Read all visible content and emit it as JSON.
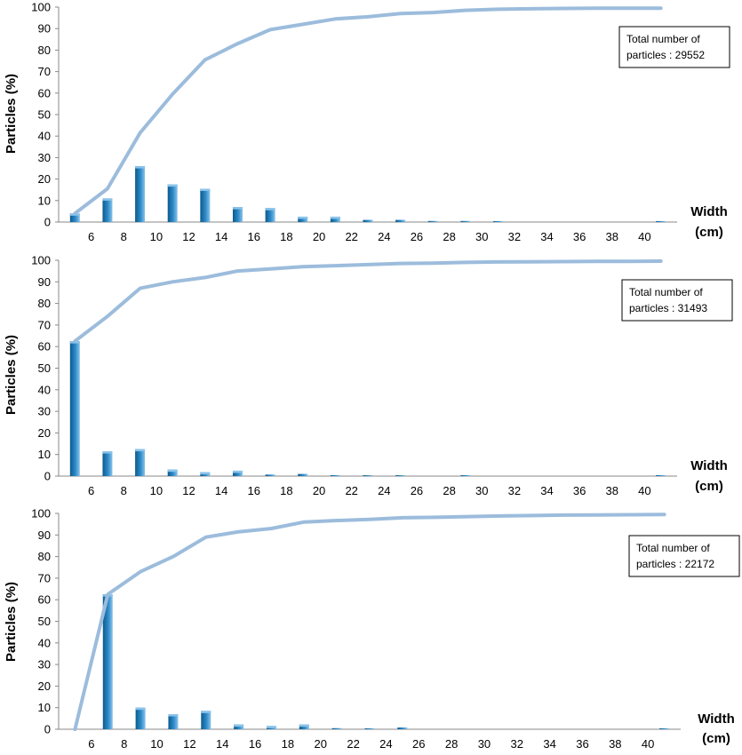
{
  "colors": {
    "bar_dark": "#0d5a8c",
    "bar_mid": "#2e8bc9",
    "bar_light": "#8ac3ea",
    "cumulative_line": "#9cbcdc",
    "axis": "#888888"
  },
  "chart_data": [
    {
      "type": "bar",
      "xlabel": "Width (cm)",
      "xlabel_lines": [
        "Width",
        "(cm)"
      ],
      "ylabel": "Particles (%)",
      "ylim": [
        0,
        100
      ],
      "yticks": [
        0,
        10,
        20,
        30,
        40,
        50,
        60,
        70,
        80,
        90,
        100
      ],
      "xlim": [
        4,
        42
      ],
      "xticks": [
        6,
        8,
        10,
        12,
        14,
        16,
        18,
        20,
        22,
        24,
        26,
        28,
        30,
        32,
        34,
        36,
        38,
        40
      ],
      "note": "Total number of particles : 29552",
      "note_lines": [
        "Total number of",
        "particles : 29552"
      ],
      "bars": {
        "x": [
          5,
          7,
          9,
          11,
          13,
          15,
          17,
          19,
          21,
          23,
          25,
          27,
          29,
          31,
          41
        ],
        "values": [
          4,
          11,
          26,
          17.5,
          15.5,
          7,
          6.5,
          2.5,
          2.5,
          1,
          1,
          0.5,
          0.5,
          0.3,
          0.3
        ]
      },
      "cumulative": {
        "x": [
          5,
          7,
          9,
          11,
          13,
          15,
          17,
          19,
          21,
          23,
          25,
          27,
          29,
          31,
          33,
          35,
          37,
          39,
          41
        ],
        "values": [
          4,
          15.5,
          41.5,
          59.5,
          75.5,
          83,
          89.5,
          92,
          94.5,
          95.5,
          97,
          97.5,
          98.5,
          99,
          99.2,
          99.4,
          99.5,
          99.5,
          99.5
        ]
      }
    },
    {
      "type": "bar",
      "xlabel": "Width (cm)",
      "xlabel_lines": [
        "Width",
        "(cm)"
      ],
      "ylabel": "Particles (%)",
      "ylim": [
        0,
        100
      ],
      "yticks": [
        0,
        10,
        20,
        30,
        40,
        50,
        60,
        70,
        80,
        90,
        100
      ],
      "xlim": [
        4,
        42
      ],
      "xticks": [
        6,
        8,
        10,
        12,
        14,
        16,
        18,
        20,
        22,
        24,
        26,
        28,
        30,
        32,
        34,
        36,
        38,
        40
      ],
      "note": "Total number of particles : 31493",
      "note_lines": [
        "Total number of",
        "particles : 31493"
      ],
      "bars": {
        "x": [
          5,
          7,
          9,
          11,
          13,
          15,
          17,
          19,
          21,
          23,
          25,
          29,
          41
        ],
        "values": [
          62.5,
          11.5,
          12.5,
          3,
          1.8,
          2.5,
          0.7,
          1,
          0.3,
          0.3,
          0.3,
          0.3,
          0.3
        ]
      },
      "cumulative": {
        "x": [
          5,
          7,
          9,
          11,
          13,
          15,
          17,
          19,
          21,
          23,
          25,
          27,
          29,
          31,
          33,
          35,
          37,
          39,
          41
        ],
        "values": [
          62.5,
          74,
          87,
          90,
          92,
          95,
          96,
          97,
          97.5,
          98,
          98.5,
          98.7,
          99,
          99.2,
          99.3,
          99.4,
          99.5,
          99.5,
          99.6
        ]
      }
    },
    {
      "type": "bar",
      "xlabel": "Width (cm)",
      "xlabel_lines": [
        "Width",
        "(cm)"
      ],
      "ylabel": "Particles (%)",
      "ylim": [
        0,
        100
      ],
      "yticks": [
        0,
        10,
        20,
        30,
        40,
        50,
        60,
        70,
        80,
        90,
        100
      ],
      "xlim": [
        4,
        42
      ],
      "xticks": [
        6,
        8,
        10,
        12,
        14,
        16,
        18,
        20,
        22,
        24,
        26,
        28,
        30,
        32,
        34,
        36,
        38,
        40
      ],
      "note": "Total number of particles : 22172",
      "note_lines": [
        "Total number of",
        "particles : 22172"
      ],
      "bars": {
        "x": [
          7,
          9,
          11,
          13,
          15,
          17,
          19,
          21,
          23,
          25,
          41
        ],
        "values": [
          62.5,
          10,
          7,
          8.5,
          2.2,
          1.5,
          2.2,
          0.5,
          0.3,
          0.8,
          0.3
        ]
      },
      "cumulative": {
        "x": [
          5,
          7,
          9,
          11,
          13,
          15,
          17,
          19,
          21,
          23,
          25,
          27,
          29,
          31,
          33,
          35,
          37,
          39,
          41
        ],
        "values": [
          0,
          62.5,
          73,
          80,
          89,
          91.5,
          93,
          96,
          96.7,
          97.2,
          98,
          98.2,
          98.5,
          98.8,
          99,
          99.2,
          99.3,
          99.4,
          99.5
        ]
      }
    }
  ]
}
